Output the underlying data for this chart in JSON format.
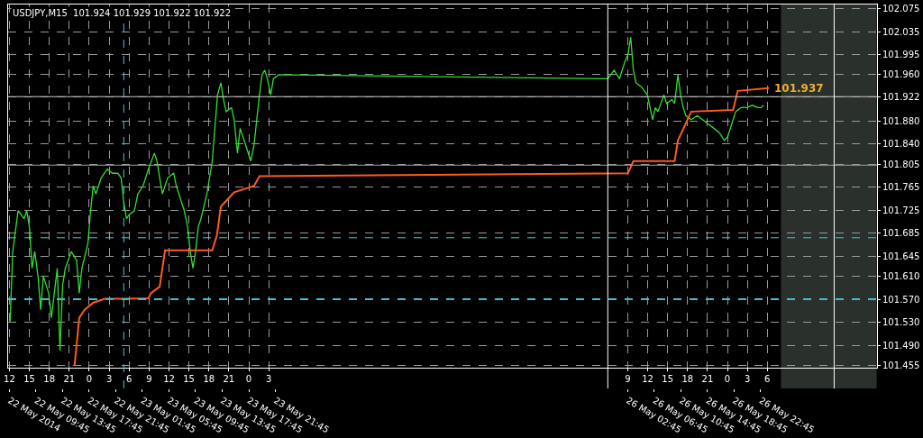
{
  "chart_data": {
    "type": "line",
    "title": "USDJPY,M15  101.924 101.929 101.922 101.922",
    "series": [
      {
        "color": "#33dd33",
        "x": [
          "2014-05-22T12:06",
          "2014-05-22T12:30",
          "2014-05-22T13:18",
          "2014-05-22T14:12",
          "2014-05-22T14:36",
          "2014-05-22T15:00",
          "2014-05-22T15:24",
          "2014-05-22T15:48",
          "2014-05-22T16:18",
          "2014-05-22T16:42",
          "2014-05-22T17:06",
          "2014-05-22T17:54",
          "2014-05-22T18:18",
          "2014-05-22T19:12",
          "2014-05-22T19:36",
          "2014-05-22T20:00",
          "2014-05-22T20:24",
          "2014-05-22T21:18",
          "2014-05-22T22:06",
          "2014-05-22T22:30",
          "2014-05-22T22:54",
          "2014-05-22T23:48",
          "2014-05-23T00:12",
          "2014-05-23T00:36",
          "2014-05-23T01:00",
          "2014-05-23T01:48",
          "2014-05-23T02:42",
          "2014-05-23T03:30",
          "2014-05-23T04:18",
          "2014-05-23T04:48",
          "2014-05-23T05:12",
          "2014-05-23T05:36",
          "2014-05-23T06:00",
          "2014-05-23T06:48",
          "2014-05-23T07:18",
          "2014-05-23T08:06",
          "2014-05-23T08:54",
          "2014-05-23T09:48",
          "2014-05-23T10:12",
          "2014-05-23T10:36",
          "2014-05-23T11:00",
          "2014-05-23T11:48",
          "2014-05-23T12:42",
          "2014-05-23T13:06",
          "2014-05-23T13:54",
          "2014-05-23T14:18",
          "2014-05-23T14:48",
          "2014-05-23T15:12",
          "2014-05-23T15:36",
          "2014-05-23T16:00",
          "2014-05-23T16:24",
          "2014-05-23T16:48",
          "2014-05-23T17:42",
          "2014-05-23T18:30",
          "2014-05-23T18:54",
          "2014-05-23T19:18",
          "2014-05-23T19:48",
          "2014-05-23T20:12",
          "2014-05-23T20:36",
          "2014-05-23T21:24",
          "2014-05-23T21:48",
          "2014-05-23T22:18",
          "2014-05-23T22:42",
          "2014-05-23T23:30",
          "2014-05-24T00:18",
          "2014-05-24T00:48",
          "2014-05-24T01:12",
          "2014-05-24T01:36",
          "2014-05-24T02:00",
          "2014-05-24T02:24",
          "2014-05-24T02:48",
          "2014-05-24T03:18",
          "2014-05-24T03:42",
          "2014-05-24T04:30",
          "2014-05-26T06:00",
          "2014-05-26T06:57",
          "2014-05-26T07:45",
          "2014-05-26T08:33",
          "2014-05-26T09:03",
          "2014-05-26T09:27",
          "2014-05-26T09:51",
          "2014-05-26T10:15",
          "2014-05-26T11:03",
          "2014-05-26T11:57",
          "2014-05-26T12:45",
          "2014-05-26T13:09",
          "2014-05-26T13:33",
          "2014-05-26T14:27",
          "2014-05-26T14:51",
          "2014-05-26T15:39",
          "2014-05-26T16:03",
          "2014-05-26T16:33",
          "2014-05-26T16:57",
          "2014-05-26T17:21",
          "2014-05-26T17:45",
          "2014-05-26T18:33",
          "2014-05-26T19:27",
          "2014-05-26T21:03",
          "2014-05-26T21:57",
          "2014-05-26T22:45",
          "2014-05-26T23:33",
          "2014-05-27T00:03",
          "2014-05-27T00:51",
          "2014-05-27T01:15",
          "2014-05-27T02:03",
          "2014-05-27T02:57",
          "2014-05-27T03:45",
          "2014-05-27T04:33",
          "2014-05-27T05:03",
          "2014-05-27T05:27"
        ],
        "values": [
          101.531,
          101.653,
          101.724,
          101.71,
          101.724,
          101.696,
          101.624,
          101.653,
          101.61,
          101.552,
          101.61,
          101.581,
          101.538,
          101.624,
          101.481,
          101.595,
          101.624,
          101.653,
          101.638,
          101.581,
          101.624,
          101.667,
          101.724,
          101.767,
          101.753,
          101.781,
          101.796,
          101.789,
          101.789,
          101.781,
          101.738,
          101.71,
          101.717,
          101.724,
          101.753,
          101.767,
          101.796,
          101.824,
          101.81,
          101.781,
          101.753,
          101.781,
          101.789,
          101.767,
          101.738,
          101.724,
          101.696,
          101.653,
          101.624,
          101.653,
          101.696,
          101.71,
          101.753,
          101.81,
          101.867,
          101.925,
          101.946,
          101.917,
          101.896,
          101.903,
          101.882,
          101.824,
          101.867,
          101.839,
          101.81,
          101.839,
          101.882,
          101.925,
          101.96,
          101.968,
          101.953,
          101.925,
          101.953,
          101.96,
          101.953,
          101.968,
          101.953,
          101.982,
          101.996,
          102.025,
          101.968,
          101.946,
          101.939,
          101.925,
          101.882,
          101.903,
          101.896,
          101.925,
          101.91,
          101.917,
          101.91,
          101.96,
          101.925,
          101.903,
          101.889,
          101.882,
          101.889,
          101.875,
          101.867,
          101.86,
          101.846,
          101.853,
          101.882,
          101.896,
          101.903,
          101.903,
          101.907,
          101.903,
          101.903,
          101.907
        ]
      },
      {
        "color": "#ff5a1e",
        "x": [
          "2014-05-22T21:48",
          "2014-05-22T22:30",
          "2014-05-22T23:18",
          "2014-05-23T00:36",
          "2014-05-23T02:18",
          "2014-05-23T05:12",
          "2014-05-23T08:54",
          "2014-05-23T09:18",
          "2014-05-23T10:36",
          "2014-05-23T11:24",
          "2014-05-23T18:30",
          "2014-05-23T19:12",
          "2014-05-23T19:48",
          "2014-05-23T21:00",
          "2014-05-23T21:48",
          "2014-05-24T00:48",
          "2014-05-24T01:36",
          "2014-05-26T09:03",
          "2014-05-26T09:51",
          "2014-05-26T16:03",
          "2014-05-26T16:33",
          "2014-05-26T18:33",
          "2014-05-27T00:51",
          "2014-05-27T01:33",
          "2014-05-27T06:15"
        ],
        "values": [
          101.455,
          101.538,
          101.552,
          101.564,
          101.571,
          101.571,
          101.572,
          101.581,
          101.592,
          101.655,
          101.655,
          101.681,
          101.731,
          101.746,
          101.756,
          101.767,
          101.784,
          101.789,
          101.81,
          101.81,
          101.846,
          101.896,
          101.899,
          101.932,
          101.937
        ]
      }
    ],
    "xlim": [
      "2014-05-22T11:48",
      "2014-05-27T22:30"
    ],
    "xticks": [
      {
        "value": "2014-05-22T12:00",
        "label": "12"
      },
      {
        "value": "2014-05-22T15:00",
        "label": "15"
      },
      {
        "value": "2014-05-22T18:00",
        "label": "18"
      },
      {
        "value": "2014-05-22T21:00",
        "label": "21"
      },
      {
        "value": "2014-05-23T00:00",
        "label": "0"
      },
      {
        "value": "2014-05-23T03:00",
        "label": "3"
      },
      {
        "value": "2014-05-23T06:00",
        "label": "6"
      },
      {
        "value": "2014-05-23T09:00",
        "label": "9"
      },
      {
        "value": "2014-05-23T12:00",
        "label": "12"
      },
      {
        "value": "2014-05-23T15:00",
        "label": "15"
      },
      {
        "value": "2014-05-23T18:00",
        "label": "18"
      },
      {
        "value": "2014-05-23T21:00",
        "label": "21"
      },
      {
        "value": "2014-05-24T00:00",
        "label": "0"
      },
      {
        "value": "2014-05-24T03:00",
        "label": "3"
      },
      {
        "value": "2014-05-26T09:00",
        "label": "9"
      },
      {
        "value": "2014-05-26T12:00",
        "label": "12"
      },
      {
        "value": "2014-05-26T15:00",
        "label": "15"
      },
      {
        "value": "2014-05-26T18:00",
        "label": "18"
      },
      {
        "value": "2014-05-26T21:00",
        "label": "21"
      },
      {
        "value": "2014-05-27T00:00",
        "label": "0"
      },
      {
        "value": "2014-05-27T03:00",
        "label": "3"
      },
      {
        "value": "2014-05-27T06:00",
        "label": "6"
      }
    ],
    "x2lim": [
      "2014-05-22T05:33",
      "2014-05-27T16:15"
    ],
    "x2ticks": [
      {
        "value": "2014-05-22T05:45",
        "label": "22 May 2014"
      },
      {
        "value": "2014-05-22T09:45",
        "label": "22 May 09:45"
      },
      {
        "value": "2014-05-22T13:45",
        "label": "22 May 13:45"
      },
      {
        "value": "2014-05-22T17:45",
        "label": "22 May 17:45"
      },
      {
        "value": "2014-05-22T21:45",
        "label": "22 May 21:45"
      },
      {
        "value": "2014-05-23T01:45",
        "label": "23 May 01:45"
      },
      {
        "value": "2014-05-23T05:45",
        "label": "23 May 05:45"
      },
      {
        "value": "2014-05-23T09:45",
        "label": "23 May 09:45"
      },
      {
        "value": "2014-05-23T13:45",
        "label": "23 May 13:45"
      },
      {
        "value": "2014-05-23T17:45",
        "label": "23 May 17:45"
      },
      {
        "value": "2014-05-23T21:45",
        "label": "23 May 21:45"
      },
      {
        "value": "2014-05-26T02:45",
        "label": "26 May 02:45"
      },
      {
        "value": "2014-05-26T06:45",
        "label": "26 May 06:45"
      },
      {
        "value": "2014-05-26T10:45",
        "label": "26 May 10:45"
      },
      {
        "value": "2014-05-26T14:45",
        "label": "26 May 14:45"
      },
      {
        "value": "2014-05-26T18:45",
        "label": "26 May 18:45"
      },
      {
        "value": "2014-05-26T22:45",
        "label": "26 May 22:45"
      }
    ],
    "ylim": [
      101.452,
      102.082
    ],
    "yticks": [
      102.075,
      102.035,
      101.995,
      {
        "value": 101.96,
        "label": "101.960"
      },
      101.922,
      {
        "value": 101.88,
        "label": "101.880"
      },
      {
        "value": 101.84,
        "label": "101.840"
      },
      101.805,
      101.765,
      101.725,
      101.685,
      101.645,
      {
        "value": 101.61,
        "label": "101.610"
      },
      {
        "value": 101.57,
        "label": "101.570"
      },
      {
        "value": 101.53,
        "label": "101.530"
      },
      {
        "value": 101.49,
        "label": "101.490"
      },
      101.455
    ],
    "grid": true,
    "ref_lines": [
      {
        "axis": "y",
        "value": 101.922,
        "color": "#c8c8c8",
        "line_style": "solid"
      },
      {
        "axis": "y",
        "value": 101.803,
        "color": "#a0a0a0",
        "line_style": "solid"
      },
      {
        "axis": "y",
        "value": 101.677,
        "color": "#40c8d8",
        "line_style": "dashed"
      },
      {
        "axis": "y",
        "value": 101.571,
        "color": "#40c8d8",
        "line_style": "dashed"
      },
      {
        "axis": "x",
        "value": "2014-05-23T05:12",
        "color": "#40c8d8",
        "line_style": "dashed"
      },
      {
        "axis": "x",
        "value": "2014-05-26T06:00",
        "color": "#ffffff",
        "line_style": "solid"
      },
      {
        "axis": "x",
        "value": "2014-05-27T16:03",
        "color": "#ffffff",
        "line_style": "solid"
      }
    ],
    "bands": [
      {
        "axis": "x",
        "from": "2014-05-27T08:03",
        "to": "2014-05-27T22:27",
        "color": "#2a302c"
      }
    ],
    "annotations": [
      {
        "text": "101.937",
        "x": "2014-05-27T06:15",
        "y": 101.937
      }
    ]
  }
}
